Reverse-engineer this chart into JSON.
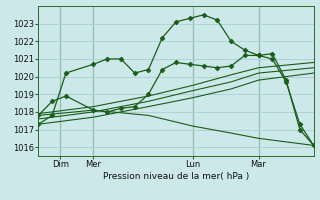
{
  "title": "Pression niveau de la mer( hPa )",
  "bg_color": "#cce8e8",
  "grid_color": "#a8d0d0",
  "line_color": "#1a5c1a",
  "xlim": [
    0,
    100
  ],
  "ylim": [
    1015.5,
    1024.0
  ],
  "yticks": [
    1016,
    1017,
    1018,
    1019,
    1020,
    1021,
    1022,
    1023
  ],
  "xtick_positions": [
    8,
    20,
    56,
    80
  ],
  "xtick_labels": [
    "Dim",
    "Mer",
    "Lun",
    "Mar"
  ],
  "vlines": [
    8,
    20,
    56,
    80
  ],
  "series": [
    {
      "x": [
        0,
        5,
        10,
        20,
        25,
        30,
        35,
        40,
        45,
        50,
        55,
        60,
        65,
        70,
        75,
        80,
        85,
        90,
        95,
        100
      ],
      "y": [
        1017.3,
        1017.8,
        1020.2,
        1020.7,
        1021.0,
        1021.0,
        1020.2,
        1020.4,
        1022.2,
        1023.1,
        1023.3,
        1023.5,
        1023.2,
        1022.0,
        1021.5,
        1021.2,
        1021.0,
        1019.7,
        1017.3,
        1016.1
      ],
      "marker": true
    },
    {
      "x": [
        0,
        5,
        10,
        20,
        25,
        30,
        35,
        40,
        45,
        50,
        55,
        60,
        65,
        70,
        75,
        80,
        85,
        90,
        95,
        100
      ],
      "y": [
        1017.8,
        1018.6,
        1018.9,
        1018.1,
        1018.0,
        1018.2,
        1018.3,
        1019.0,
        1020.4,
        1020.8,
        1020.7,
        1020.6,
        1020.5,
        1020.6,
        1021.2,
        1021.2,
        1021.3,
        1019.8,
        1017.0,
        1016.1
      ],
      "marker": true
    },
    {
      "x": [
        0,
        20,
        40,
        56,
        70,
        80,
        100
      ],
      "y": [
        1017.9,
        1018.3,
        1018.9,
        1019.5,
        1020.1,
        1020.5,
        1020.8
      ],
      "marker": false
    },
    {
      "x": [
        0,
        20,
        40,
        56,
        70,
        80,
        100
      ],
      "y": [
        1017.6,
        1018.0,
        1018.6,
        1019.2,
        1019.7,
        1020.2,
        1020.5
      ],
      "marker": false
    },
    {
      "x": [
        0,
        20,
        40,
        56,
        70,
        80,
        100
      ],
      "y": [
        1017.3,
        1017.7,
        1018.3,
        1018.8,
        1019.3,
        1019.8,
        1020.2
      ],
      "marker": false
    },
    {
      "x": [
        0,
        20,
        40,
        56,
        70,
        80,
        90,
        100
      ],
      "y": [
        1017.8,
        1018.1,
        1017.8,
        1017.2,
        1016.8,
        1016.5,
        1016.3,
        1016.1
      ],
      "marker": false
    }
  ]
}
